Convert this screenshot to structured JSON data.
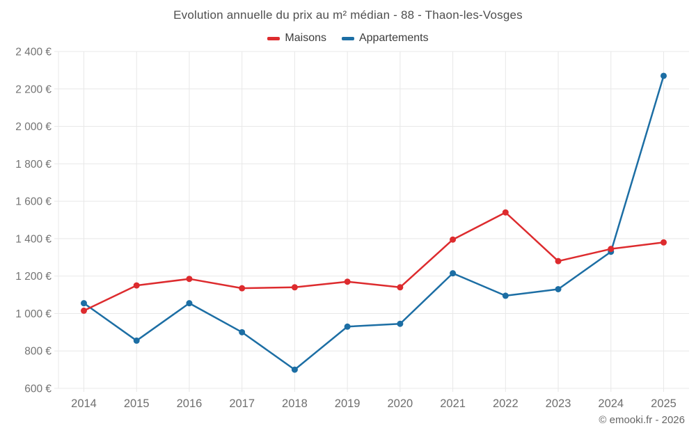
{
  "page": {
    "title": "Evolution annuelle du prix au m² médian - 88 - Thaon-les-Vosges",
    "footer": "© emooki.fr - 2026"
  },
  "legend": {
    "items": [
      {
        "label": "Maisons",
        "color": "#dd2b2e"
      },
      {
        "label": "Appartements",
        "color": "#1c6ea4"
      }
    ]
  },
  "chart_data": {
    "type": "line",
    "title": "Evolution annuelle du prix au m² médian - 88 - Thaon-les-Vosges",
    "categories": [
      "2014",
      "2015",
      "2016",
      "2017",
      "2018",
      "2019",
      "2020",
      "2021",
      "2022",
      "2023",
      "2024",
      "2025"
    ],
    "series": [
      {
        "name": "Maisons",
        "color": "#dd2b2e",
        "values": [
          1015,
          1150,
          1185,
          1135,
          1140,
          1170,
          1140,
          1395,
          1540,
          1280,
          1345,
          1380
        ]
      },
      {
        "name": "Appartements",
        "color": "#1c6ea4",
        "values": [
          1055,
          855,
          1055,
          900,
          700,
          930,
          945,
          1215,
          1095,
          1130,
          1330,
          2270
        ]
      }
    ],
    "xlabel": "",
    "ylabel": "",
    "ylim": [
      600,
      2400
    ],
    "ytick_step": 200,
    "y_ticks": [
      {
        "value": 600,
        "label": "600 €"
      },
      {
        "value": 800,
        "label": "800 €"
      },
      {
        "value": 1000,
        "label": "1 000 €"
      },
      {
        "value": 1200,
        "label": "1 200 €"
      },
      {
        "value": 1400,
        "label": "1 400 €"
      },
      {
        "value": 1600,
        "label": "1 600 €"
      },
      {
        "value": 1800,
        "label": "1 800 €"
      },
      {
        "value": 2000,
        "label": "2 000 €"
      },
      {
        "value": 2200,
        "label": "2 200 €"
      },
      {
        "value": 2400,
        "label": "2 400 €"
      }
    ],
    "grid": true,
    "legend_position": "top",
    "unit": "€"
  }
}
